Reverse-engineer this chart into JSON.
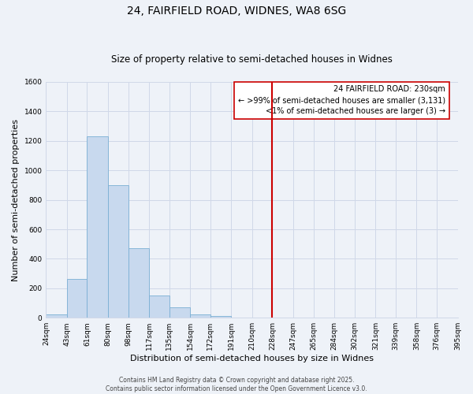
{
  "title": "24, FAIRFIELD ROAD, WIDNES, WA8 6SG",
  "subtitle": "Size of property relative to semi-detached houses in Widnes",
  "xlabel": "Distribution of semi-detached houses by size in Widnes",
  "ylabel": "Number of semi-detached properties",
  "bin_labels": [
    "24sqm",
    "43sqm",
    "61sqm",
    "80sqm",
    "98sqm",
    "117sqm",
    "135sqm",
    "154sqm",
    "172sqm",
    "191sqm",
    "210sqm",
    "228sqm",
    "247sqm",
    "265sqm",
    "284sqm",
    "302sqm",
    "321sqm",
    "339sqm",
    "358sqm",
    "376sqm",
    "395sqm"
  ],
  "bar_values": [
    25,
    265,
    1230,
    900,
    470,
    150,
    70,
    25,
    10,
    0,
    0,
    0,
    0,
    0,
    0,
    0,
    0,
    0,
    0,
    0
  ],
  "bin_edges": [
    24,
    43,
    61,
    80,
    98,
    117,
    135,
    154,
    172,
    191,
    210,
    228,
    247,
    265,
    284,
    302,
    321,
    339,
    358,
    376,
    395
  ],
  "bar_color": "#c8d9ee",
  "bar_edge_color": "#7aafd4",
  "vline_x": 228,
  "vline_color": "#cc0000",
  "ylim": [
    0,
    1600
  ],
  "yticks": [
    0,
    200,
    400,
    600,
    800,
    1000,
    1200,
    1400,
    1600
  ],
  "legend_title": "24 FAIRFIELD ROAD: 230sqm",
  "legend_line1": "← >99% of semi-detached houses are smaller (3,131)",
  "legend_line2": "<1% of semi-detached houses are larger (3) →",
  "footer1": "Contains HM Land Registry data © Crown copyright and database right 2025.",
  "footer2": "Contains public sector information licensed under the Open Government Licence v3.0.",
  "bg_color": "#eef2f8",
  "grid_color": "#d0d8e8",
  "title_fontsize": 10,
  "subtitle_fontsize": 8.5,
  "axis_label_fontsize": 8,
  "tick_fontsize": 6.5,
  "legend_fontsize": 7,
  "footer_fontsize": 5.5
}
